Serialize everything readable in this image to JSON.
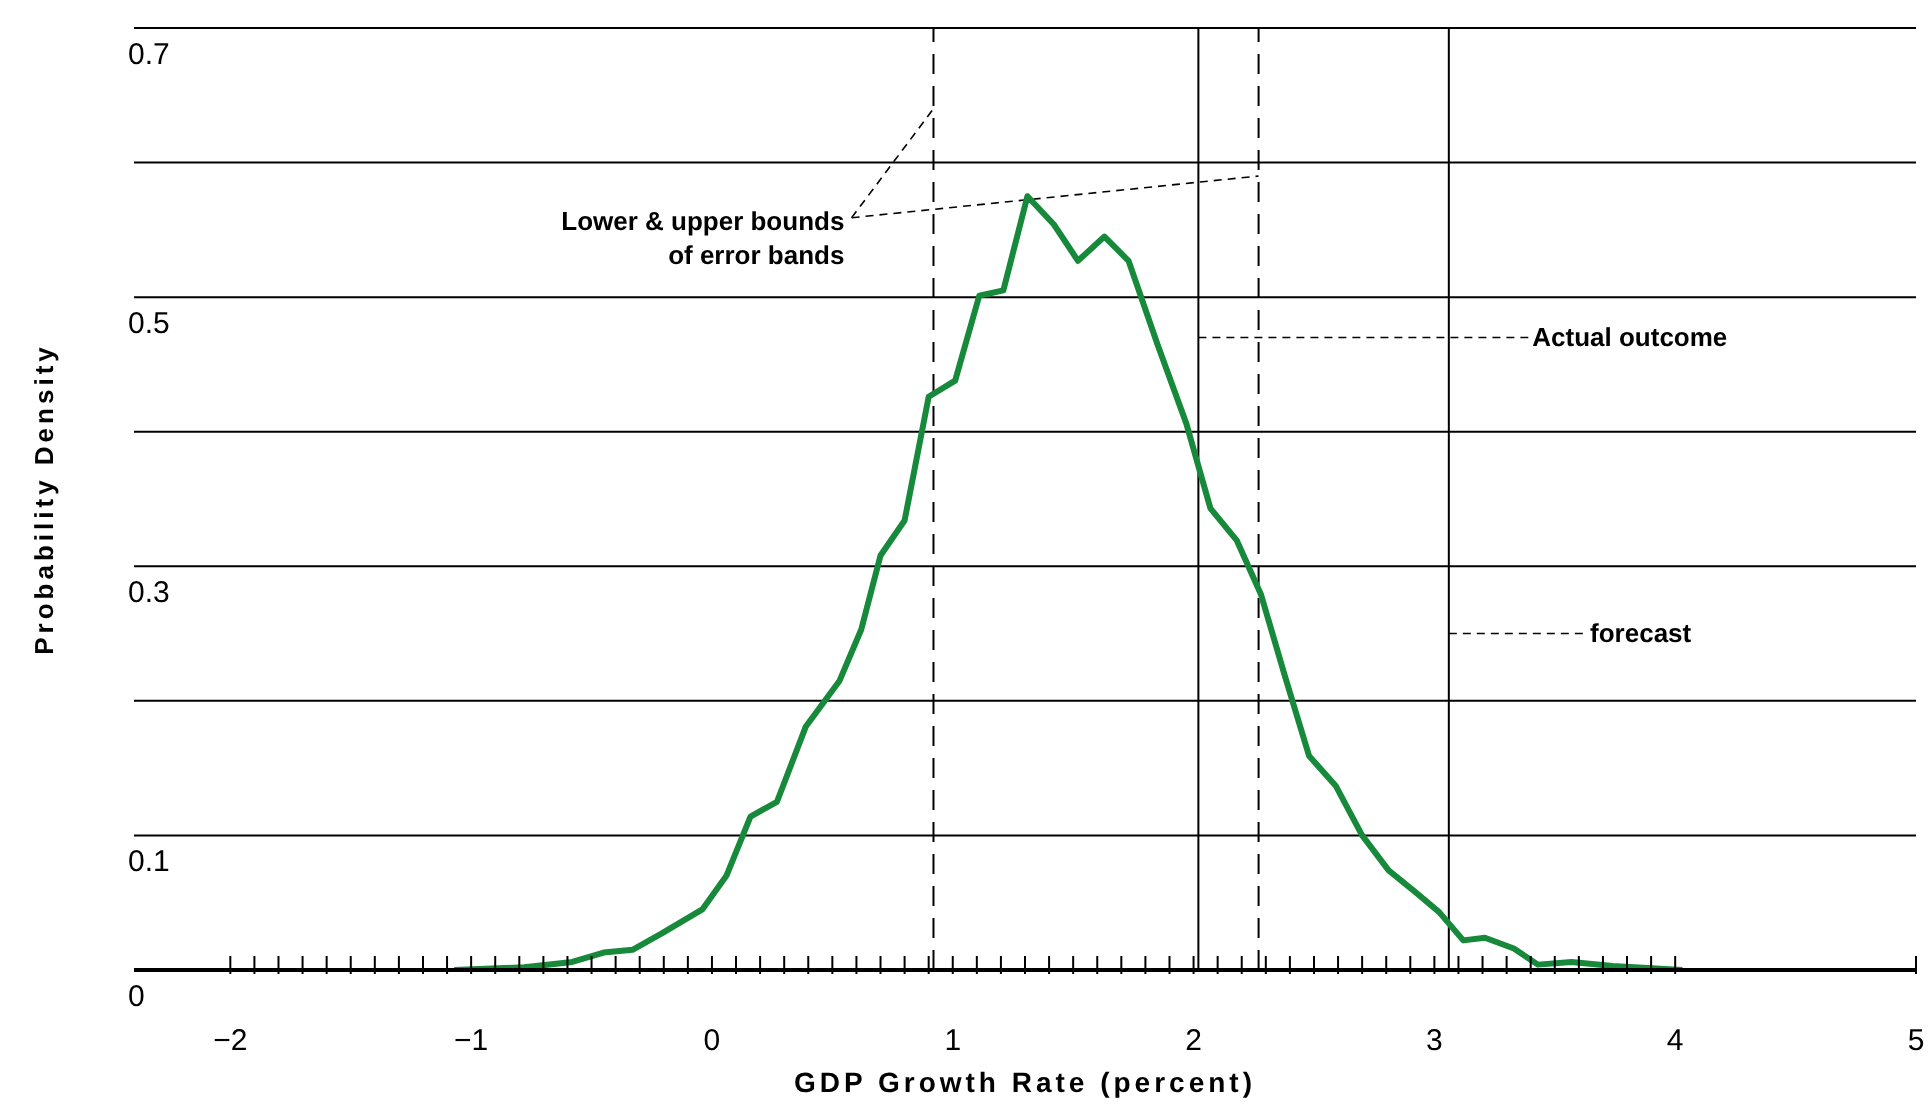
{
  "chart_data": {
    "type": "line",
    "xlabel": "GDP Growth Rate (percent)",
    "ylabel": "Probability Density",
    "x": [
      -1.07,
      -0.78,
      -0.58,
      -0.45,
      -0.33,
      -0.21,
      -0.04,
      0.06,
      0.16,
      0.27,
      0.39,
      0.53,
      0.62,
      0.7,
      0.8,
      0.9,
      1.01,
      1.11,
      1.21,
      1.31,
      1.42,
      1.52,
      1.63,
      1.73,
      1.85,
      1.97,
      2.07,
      2.18,
      2.28,
      2.38,
      2.48,
      2.59,
      2.7,
      2.81,
      2.92,
      3.02,
      3.12,
      3.21,
      3.33,
      3.43,
      3.57,
      3.74,
      4.03
    ],
    "series": [
      {
        "color": "#17893b",
        "values": [
          0,
          0.002,
          0.006,
          0.013,
          0.015,
          0.027,
          0.045,
          0.07,
          0.114,
          0.125,
          0.181,
          0.215,
          0.253,
          0.308,
          0.334,
          0.426,
          0.438,
          0.501,
          0.505,
          0.575,
          0.554,
          0.527,
          0.545,
          0.527,
          0.465,
          0.406,
          0.343,
          0.319,
          0.279,
          0.218,
          0.159,
          0.137,
          0.1,
          0.074,
          0.058,
          0.043,
          0.022,
          0.024,
          0.016,
          0.004,
          0.006,
          0.003,
          0
        ]
      }
    ],
    "xlim": [
      -2.4,
      5
    ],
    "ylim": [
      0,
      0.7
    ],
    "xticks": [
      {
        "value": -2,
        "label": "−2"
      },
      {
        "value": -1.9,
        "label": null
      },
      {
        "value": -1.8,
        "label": null
      },
      {
        "value": -1.7,
        "label": null
      },
      {
        "value": -1.6,
        "label": null
      },
      {
        "value": -1.5,
        "label": null
      },
      {
        "value": -1.4,
        "label": null
      },
      {
        "value": -1.3,
        "label": null
      },
      {
        "value": -1.2,
        "label": null
      },
      {
        "value": -1.1,
        "label": null
      },
      {
        "value": -1,
        "label": "−1"
      },
      {
        "value": -0.9,
        "label": null
      },
      {
        "value": -0.8,
        "label": null
      },
      {
        "value": -0.7,
        "label": null
      },
      {
        "value": -0.6,
        "label": null
      },
      {
        "value": -0.5,
        "label": null
      },
      {
        "value": -0.4,
        "label": null
      },
      {
        "value": -0.3,
        "label": null
      },
      {
        "value": -0.2,
        "label": null
      },
      {
        "value": -0.1,
        "label": null
      },
      0,
      {
        "value": 0.1,
        "label": null
      },
      {
        "value": 0.2,
        "label": null
      },
      {
        "value": 0.3,
        "label": null
      },
      {
        "value": 0.4,
        "label": null
      },
      {
        "value": 0.5,
        "label": null
      },
      {
        "value": 0.6,
        "label": null
      },
      {
        "value": 0.7,
        "label": null
      },
      {
        "value": 0.8,
        "label": null
      },
      {
        "value": 0.9,
        "label": null
      },
      1,
      {
        "value": 1.1,
        "label": null
      },
      {
        "value": 1.2,
        "label": null
      },
      {
        "value": 1.3,
        "label": null
      },
      {
        "value": 1.4,
        "label": null
      },
      {
        "value": 1.5,
        "label": null
      },
      {
        "value": 1.6,
        "label": null
      },
      {
        "value": 1.7,
        "label": null
      },
      {
        "value": 1.8,
        "label": null
      },
      {
        "value": 1.9,
        "label": null
      },
      2,
      {
        "value": 2.1,
        "label": null
      },
      {
        "value": 2.2,
        "label": null
      },
      {
        "value": 2.3,
        "label": null
      },
      {
        "value": 2.4,
        "label": null
      },
      {
        "value": 2.5,
        "label": null
      },
      {
        "value": 2.6,
        "label": null
      },
      {
        "value": 2.7,
        "label": null
      },
      {
        "value": 2.8,
        "label": null
      },
      {
        "value": 2.9,
        "label": null
      },
      3,
      {
        "value": 3.1,
        "label": null
      },
      {
        "value": 3.2,
        "label": null
      },
      {
        "value": 3.3,
        "label": null
      },
      {
        "value": 3.4,
        "label": null
      },
      {
        "value": 3.5,
        "label": null
      },
      {
        "value": 3.6,
        "label": null
      },
      {
        "value": 3.7,
        "label": null
      },
      {
        "value": 3.8,
        "label": null
      },
      {
        "value": 3.9,
        "label": null
      },
      4,
      5
    ],
    "yticks": [
      0,
      0.1,
      {
        "value": 0.2,
        "label": null
      },
      0.3,
      {
        "value": 0.4,
        "label": null
      },
      0.5,
      {
        "value": 0.6,
        "label": null
      },
      0.7
    ],
    "grid": "y",
    "marker": "none",
    "line_style": "solid",
    "ref_lines": [
      {
        "axis": "x",
        "value": 0.92,
        "label": null,
        "line_style": "dashed",
        "color": "#000000"
      },
      {
        "axis": "x",
        "value": 2.27,
        "label": null,
        "line_style": "dashed",
        "color": "#000000"
      },
      {
        "axis": "x",
        "value": 2.02,
        "label": null,
        "line_style": "solid",
        "color": "#000000"
      },
      {
        "axis": "x",
        "value": 3.06,
        "label": null,
        "line_style": "solid",
        "color": "#000000"
      }
    ],
    "annotations": [
      {
        "text": "Lower & upper bounds\nof error bands",
        "x": 0.92,
        "y": 0.64
      },
      {
        "text": "Actual outcome",
        "x": 2.02,
        "y": 0.47
      },
      {
        "text": "forecast",
        "x": 3.06,
        "y": 0.25
      }
    ]
  }
}
